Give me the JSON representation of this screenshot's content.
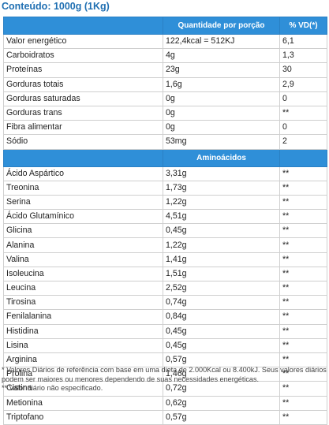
{
  "title": "Conteúdo: 1000g (1Kg)",
  "header": {
    "col1": "",
    "col2": "Quantidade por porção",
    "col3": "% VD(*)"
  },
  "nutrients": [
    {
      "name": "Valor energético",
      "amount": "122,4kcal = 512KJ",
      "vd": "6,1"
    },
    {
      "name": "Carboidratos",
      "amount": "4g",
      "vd": "1,3"
    },
    {
      "name": "Proteínas",
      "amount": "23g",
      "vd": "30"
    },
    {
      "name": "Gorduras totais",
      "amount": "1,6g",
      "vd": "2,9"
    },
    {
      "name": "Gorduras saturadas",
      "amount": "0g",
      "vd": "0"
    },
    {
      "name": "Gorduras trans",
      "amount": "0g",
      "vd": "**"
    },
    {
      "name": "Fibra alimentar",
      "amount": "0g",
      "vd": "0"
    },
    {
      "name": "Sódio",
      "amount": "53mg",
      "vd": "2"
    }
  ],
  "amino_header": "Aminoácidos",
  "aminoacids": [
    {
      "name": "Ácido Aspártico",
      "amount": "3,31g",
      "vd": "**"
    },
    {
      "name": "Treonina",
      "amount": "1,73g",
      "vd": "**"
    },
    {
      "name": "Serina",
      "amount": "1,22g",
      "vd": "**"
    },
    {
      "name": "Ácido Glutamínico",
      "amount": "4,51g",
      "vd": "**"
    },
    {
      "name": "Glicina",
      "amount": "0,45g",
      "vd": "**"
    },
    {
      "name": "Alanina",
      "amount": "1,22g",
      "vd": "**"
    },
    {
      "name": "Valina",
      "amount": "1,41g",
      "vd": "**"
    },
    {
      "name": "Isoleucina",
      "amount": "1,51g",
      "vd": "**"
    },
    {
      "name": "Leucina",
      "amount": "2,52g",
      "vd": "**"
    },
    {
      "name": "Tirosina",
      "amount": "0,74g",
      "vd": "**"
    },
    {
      "name": "Fenilalanina",
      "amount": "0,84g",
      "vd": "**"
    },
    {
      "name": "Histidina",
      "amount": "0,45g",
      "vd": "**"
    },
    {
      "name": "Lisina",
      "amount": "0,45g",
      "vd": "**"
    },
    {
      "name": "Arginina",
      "amount": "0,57g",
      "vd": "**"
    },
    {
      "name": "Prolina",
      "amount": "1,46g",
      "vd": "**"
    },
    {
      "name": "Cistina",
      "amount": "0,72g",
      "vd": "**"
    },
    {
      "name": "Metionina",
      "amount": "0,62g",
      "vd": "**"
    },
    {
      "name": "Triptofano",
      "amount": "0,57g",
      "vd": "**"
    }
  ],
  "footnotes": {
    "note1": "* Valores Diários de referência com base em uma dieta de 2.000Kcal ou 8.400kJ. Seus valores diários podem ser maiores ou menores dependendo de suas necessidades energéticas.",
    "note2": "** Valor diário não especificado."
  },
  "colors": {
    "header_bg": "#2f8fd8",
    "title": "#1f6fb2",
    "border": "#cfcfcf"
  }
}
